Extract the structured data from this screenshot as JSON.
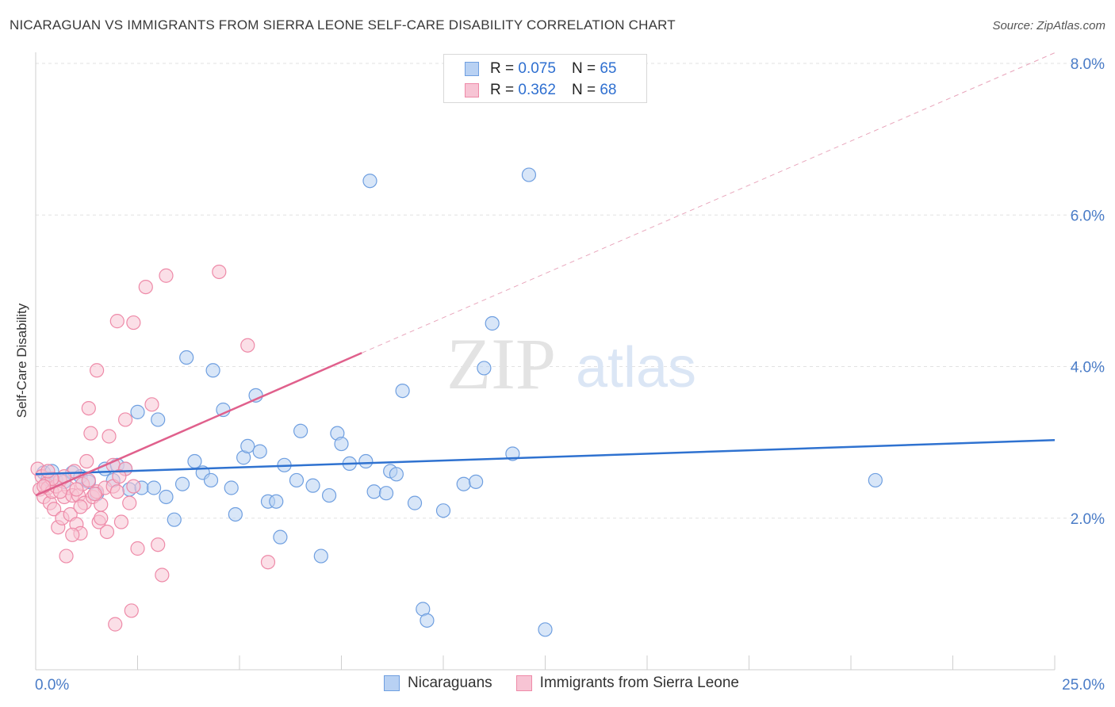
{
  "title": "NICARAGUAN VS IMMIGRANTS FROM SIERRA LEONE SELF-CARE DISABILITY CORRELATION CHART",
  "source": "Source: ZipAtlas.com",
  "watermark": {
    "zip": "ZIP",
    "atlas": "atlas"
  },
  "legend": {
    "rows": [
      {
        "r_label": "R =",
        "r_value": "0.075",
        "n_label": "N =",
        "n_value": "65"
      },
      {
        "r_label": "R =",
        "r_value": "0.362",
        "n_label": "N =",
        "n_value": "68"
      }
    ]
  },
  "chart_data": {
    "type": "scatter",
    "title": "NICARAGUAN VS IMMIGRANTS FROM SIERRA LEONE SELF-CARE DISABILITY CORRELATION CHART",
    "xlabel": "",
    "ylabel": "Self-Care Disability",
    "xlim": [
      0,
      25
    ],
    "ylim": [
      0,
      8
    ],
    "x_tick_labels": [
      "0.0%",
      "25.0%"
    ],
    "y_ticks": [
      2,
      4,
      6,
      8
    ],
    "y_tick_labels": [
      "2.0%",
      "4.0%",
      "6.0%",
      "8.0%"
    ],
    "grid": true,
    "legend_position": "top-center",
    "series": [
      {
        "name": "Nicaraguans",
        "color": "#6f9fe0",
        "fill": "#b8d1f3",
        "trend": {
          "x": [
            0,
            25
          ],
          "y": [
            2.58,
            3.03
          ],
          "color": "#2f72d0",
          "style": "solid"
        },
        "points": [
          [
            0.2,
            2.6
          ],
          [
            0.25,
            2.45
          ],
          [
            0.3,
            2.52
          ],
          [
            0.4,
            2.62
          ],
          [
            0.5,
            2.5
          ],
          [
            0.7,
            2.48
          ],
          [
            0.9,
            2.6
          ],
          [
            1.1,
            2.55
          ],
          [
            1.3,
            2.48
          ],
          [
            1.5,
            2.32
          ],
          [
            1.7,
            2.65
          ],
          [
            1.9,
            2.5
          ],
          [
            2.0,
            2.7
          ],
          [
            2.2,
            2.65
          ],
          [
            2.3,
            2.38
          ],
          [
            2.5,
            3.4
          ],
          [
            2.6,
            2.4
          ],
          [
            2.9,
            2.4
          ],
          [
            3.0,
            3.3
          ],
          [
            3.2,
            2.28
          ],
          [
            3.4,
            1.98
          ],
          [
            3.6,
            2.45
          ],
          [
            3.7,
            4.12
          ],
          [
            3.9,
            2.75
          ],
          [
            4.1,
            2.6
          ],
          [
            4.3,
            2.5
          ],
          [
            4.35,
            3.95
          ],
          [
            4.6,
            3.43
          ],
          [
            4.8,
            2.4
          ],
          [
            4.9,
            2.05
          ],
          [
            5.1,
            2.8
          ],
          [
            5.2,
            2.95
          ],
          [
            5.4,
            3.62
          ],
          [
            5.5,
            2.88
          ],
          [
            5.7,
            2.22
          ],
          [
            5.9,
            2.22
          ],
          [
            6.0,
            1.75
          ],
          [
            6.1,
            2.7
          ],
          [
            6.4,
            2.5
          ],
          [
            6.5,
            3.15
          ],
          [
            6.8,
            2.43
          ],
          [
            7.0,
            1.5
          ],
          [
            7.2,
            2.3
          ],
          [
            7.4,
            3.12
          ],
          [
            7.5,
            2.98
          ],
          [
            7.7,
            2.72
          ],
          [
            8.1,
            2.75
          ],
          [
            8.2,
            6.45
          ],
          [
            8.3,
            2.35
          ],
          [
            8.6,
            2.33
          ],
          [
            8.7,
            2.62
          ],
          [
            8.85,
            2.58
          ],
          [
            9.0,
            3.68
          ],
          [
            9.3,
            2.2
          ],
          [
            9.5,
            0.8
          ],
          [
            9.6,
            0.65
          ],
          [
            10.0,
            2.1
          ],
          [
            10.5,
            2.45
          ],
          [
            10.8,
            2.48
          ],
          [
            11.0,
            3.98
          ],
          [
            11.2,
            4.57
          ],
          [
            11.7,
            2.85
          ],
          [
            12.1,
            6.53
          ],
          [
            12.5,
            0.53
          ],
          [
            20.6,
            2.5
          ]
        ]
      },
      {
        "name": "Immigrants from Sierra Leone",
        "color": "#ee8aa8",
        "fill": "#f7c4d4",
        "trend": {
          "x": [
            0,
            8.0
          ],
          "y": [
            2.3,
            4.18
          ],
          "x_dashed_end": 25.0,
          "y_dashed_end": 8.14,
          "color": "#e0608c",
          "style": "solid+dashed"
        },
        "points": [
          [
            0.05,
            2.65
          ],
          [
            0.1,
            2.38
          ],
          [
            0.15,
            2.55
          ],
          [
            0.2,
            2.28
          ],
          [
            0.25,
            2.45
          ],
          [
            0.3,
            2.4
          ],
          [
            0.35,
            2.2
          ],
          [
            0.4,
            2.35
          ],
          [
            0.45,
            2.12
          ],
          [
            0.5,
            2.42
          ],
          [
            0.55,
            1.88
          ],
          [
            0.6,
            2.5
          ],
          [
            0.65,
            2.0
          ],
          [
            0.7,
            2.28
          ],
          [
            0.75,
            1.5
          ],
          [
            0.8,
            2.4
          ],
          [
            0.85,
            2.05
          ],
          [
            0.9,
            2.3
          ],
          [
            0.95,
            2.62
          ],
          [
            1.0,
            1.92
          ],
          [
            1.05,
            2.3
          ],
          [
            1.1,
            1.8
          ],
          [
            1.15,
            2.45
          ],
          [
            1.2,
            2.2
          ],
          [
            1.25,
            2.75
          ],
          [
            1.3,
            3.45
          ],
          [
            1.35,
            3.12
          ],
          [
            1.4,
            2.28
          ],
          [
            1.5,
            2.35
          ],
          [
            1.55,
            1.95
          ],
          [
            1.6,
            2.18
          ],
          [
            1.7,
            2.4
          ],
          [
            1.75,
            1.82
          ],
          [
            1.8,
            3.08
          ],
          [
            1.9,
            2.42
          ],
          [
            2.0,
            2.35
          ],
          [
            2.1,
            1.95
          ],
          [
            2.2,
            3.3
          ],
          [
            2.3,
            2.2
          ],
          [
            2.4,
            2.42
          ],
          [
            2.5,
            1.6
          ],
          [
            2.7,
            5.05
          ],
          [
            2.85,
            3.5
          ],
          [
            3.0,
            1.65
          ],
          [
            3.2,
            5.2
          ],
          [
            4.5,
            5.25
          ],
          [
            5.2,
            4.28
          ],
          [
            5.7,
            1.42
          ],
          [
            2.0,
            4.6
          ],
          [
            2.4,
            4.58
          ],
          [
            1.5,
            3.95
          ],
          [
            2.35,
            0.78
          ],
          [
            1.95,
            0.6
          ],
          [
            3.1,
            1.25
          ],
          [
            0.9,
            1.78
          ],
          [
            1.1,
            2.15
          ],
          [
            1.6,
            2.0
          ],
          [
            1.3,
            2.5
          ],
          [
            1.0,
            2.38
          ],
          [
            0.7,
            2.55
          ],
          [
            0.6,
            2.35
          ],
          [
            0.4,
            2.52
          ],
          [
            0.3,
            2.62
          ],
          [
            0.2,
            2.42
          ],
          [
            1.9,
            2.7
          ],
          [
            2.2,
            2.65
          ],
          [
            2.05,
            2.55
          ],
          [
            1.45,
            2.32
          ]
        ]
      }
    ]
  }
}
